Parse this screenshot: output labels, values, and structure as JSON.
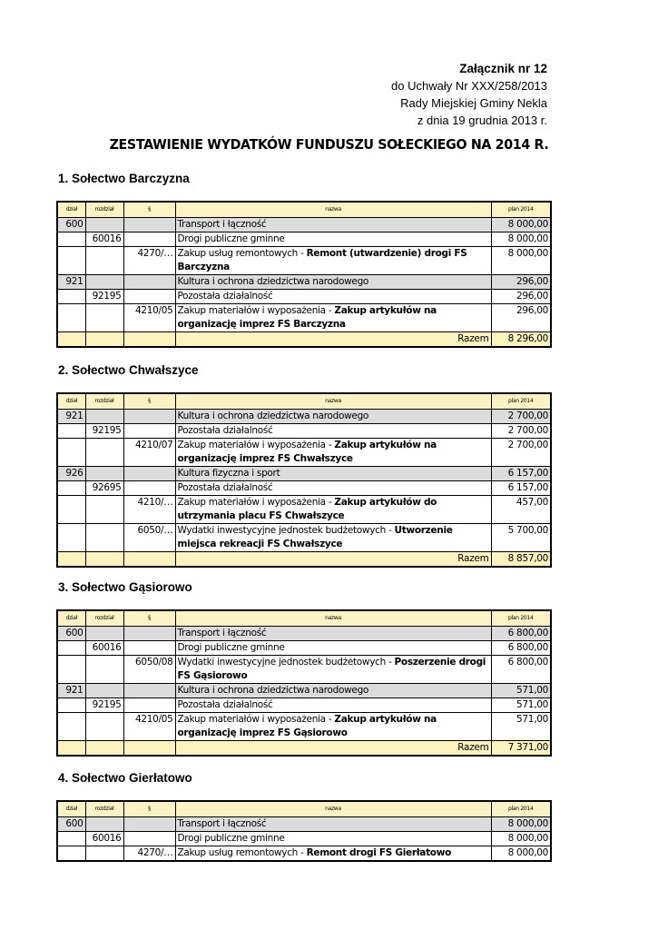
{
  "header": {
    "title": "Załącznik nr 12",
    "line1": "do Uchwały Nr XXX/258/2013",
    "line2": "Rady Miejskiej Gminy Nekla",
    "line3": "z dnia 19 grudnia 2013 r."
  },
  "doc_title": "ZESTAWIENIE WYDATKÓW FUNDUSZU SOŁECKIEGO NA 2014 R.",
  "columns": [
    "dział",
    "rozdział",
    "§",
    "nazwa",
    "plan 2014"
  ],
  "sections": [
    {
      "heading": "1. Sołectwo Barczyzna",
      "rows": [
        {
          "type": "group",
          "dzial": "600",
          "rozdzial": "",
          "par": "",
          "nazwa": "Transport i łączność",
          "bold": "",
          "plan": "8 000,00"
        },
        {
          "type": "normal",
          "dzial": "",
          "rozdzial": "60016",
          "par": "",
          "nazwa": "Drogi publiczne gminne",
          "bold": "",
          "plan": "8 000,00"
        },
        {
          "type": "normal",
          "dzial": "",
          "rozdzial": "",
          "par": "4270/…",
          "nazwa": "Zakup usług remontowych - ",
          "bold": "Remont (utwardzenie) drogi FS Barczyzna",
          "plan": "8 000,00"
        },
        {
          "type": "group",
          "dzial": "921",
          "rozdzial": "",
          "par": "",
          "nazwa": "Kultura i ochrona dziedzictwa narodowego",
          "bold": "",
          "plan": "296,00"
        },
        {
          "type": "normal",
          "dzial": "",
          "rozdzial": "92195",
          "par": "",
          "nazwa": "Pozostała działalność",
          "bold": "",
          "plan": "296,00"
        },
        {
          "type": "normal",
          "dzial": "",
          "rozdzial": "",
          "par": "4210/05",
          "nazwa": "Zakup materiałów i wyposażenia - ",
          "bold": "Zakup artykułów na organizację imprez FS Barczyzna",
          "plan": "296,00"
        },
        {
          "type": "total",
          "dzial": "",
          "rozdzial": "",
          "par": "",
          "nazwa": "Razem",
          "bold": "",
          "plan": "8 296,00"
        }
      ]
    },
    {
      "heading": "2. Sołectwo Chwałszyce",
      "rows": [
        {
          "type": "group",
          "dzial": "921",
          "rozdzial": "",
          "par": "",
          "nazwa": "Kultura i ochrona dziedzictwa narodowego",
          "bold": "",
          "plan": "2 700,00"
        },
        {
          "type": "normal",
          "dzial": "",
          "rozdzial": "92195",
          "par": "",
          "nazwa": "Pozostała działalność",
          "bold": "",
          "plan": "2 700,00"
        },
        {
          "type": "normal",
          "dzial": "",
          "rozdzial": "",
          "par": "4210/07",
          "nazwa": "Zakup materiałów i wyposażenia - ",
          "bold": "Zakup artykułów na organizację imprez FS Chwałszyce",
          "plan": "2 700,00"
        },
        {
          "type": "group",
          "dzial": "926",
          "rozdzial": "",
          "par": "",
          "nazwa": "Kultura fizyczna i sport",
          "bold": "",
          "plan": "6 157,00"
        },
        {
          "type": "normal",
          "dzial": "",
          "rozdzial": "92695",
          "par": "",
          "nazwa": "Pozostała działalność",
          "bold": "",
          "plan": "6 157,00"
        },
        {
          "type": "normal",
          "dzial": "",
          "rozdzial": "",
          "par": "4210/…",
          "nazwa": "Zakup materiałów i wyposażenia - ",
          "bold": "Zakup artykułów do utrzymania placu FS Chwałszyce",
          "plan": "457,00"
        },
        {
          "type": "normal",
          "dzial": "",
          "rozdzial": "",
          "par": "6050/…",
          "nazwa": "Wydatki inwestycyjne jednostek budżetowych - ",
          "bold": "Utworzenie miejsca rekreacji FS Chwałszyce",
          "plan": "5 700,00"
        },
        {
          "type": "total",
          "dzial": "",
          "rozdzial": "",
          "par": "",
          "nazwa": "Razem",
          "bold": "",
          "plan": "8 857,00"
        }
      ]
    },
    {
      "heading": "3. Sołectwo Gąsiorowo",
      "rows": [
        {
          "type": "group",
          "dzial": "600",
          "rozdzial": "",
          "par": "",
          "nazwa": "Transport i łączność",
          "bold": "",
          "plan": "6 800,00"
        },
        {
          "type": "normal",
          "dzial": "",
          "rozdzial": "60016",
          "par": "",
          "nazwa": "Drogi publiczne gminne",
          "bold": "",
          "plan": "6 800,00"
        },
        {
          "type": "normal",
          "dzial": "",
          "rozdzial": "",
          "par": "6050/08",
          "nazwa": "Wydatki inwestycyjne jednostek budżetowych - ",
          "bold": "Poszerzenie drogi FS Gąsiorowo",
          "plan": "6 800,00"
        },
        {
          "type": "group",
          "dzial": "921",
          "rozdzial": "",
          "par": "",
          "nazwa": "Kultura i ochrona dziedzictwa narodowego",
          "bold": "",
          "plan": "571,00"
        },
        {
          "type": "normal",
          "dzial": "",
          "rozdzial": "92195",
          "par": "",
          "nazwa": "Pozostała działalność",
          "bold": "",
          "plan": "571,00"
        },
        {
          "type": "normal",
          "dzial": "",
          "rozdzial": "",
          "par": "4210/05",
          "nazwa": "Zakup materiałów i wyposażenia - ",
          "bold": "Zakup artykułów na organizację imprez FS Gąsiorowo",
          "plan": "571,00"
        },
        {
          "type": "total",
          "dzial": "",
          "rozdzial": "",
          "par": "",
          "nazwa": "Razem",
          "bold": "",
          "plan": "7 371,00"
        }
      ]
    },
    {
      "heading": "4. Sołectwo Gierłatowo",
      "rows": [
        {
          "type": "group",
          "dzial": "600",
          "rozdzial": "",
          "par": "",
          "nazwa": "Transport i łączność",
          "bold": "",
          "plan": "8 000,00"
        },
        {
          "type": "normal",
          "dzial": "",
          "rozdzial": "60016",
          "par": "",
          "nazwa": "Drogi publiczne gminne",
          "bold": "",
          "plan": "8 000,00"
        },
        {
          "type": "normal",
          "dzial": "",
          "rozdzial": "",
          "par": "4270/…",
          "nazwa": "Zakup usług remontowych - ",
          "bold": "Remont drogi FS Gierłatowo",
          "plan": "8 000,00"
        }
      ]
    }
  ]
}
